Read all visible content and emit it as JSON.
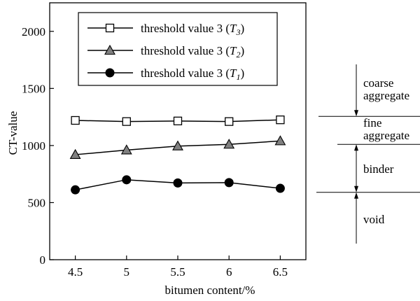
{
  "chart_data": {
    "type": "line",
    "xlabel": "bitumen content/%",
    "ylabel": "CT-value",
    "x": [
      4.5,
      5,
      5.5,
      6,
      6.5
    ],
    "x_tick_labels": [
      "4.5",
      "5",
      "5.5",
      "6",
      "6.5"
    ],
    "xlim": [
      4.25,
      6.75
    ],
    "ylim": [
      0,
      2250
    ],
    "y_ticks": [
      0,
      500,
      1000,
      1500,
      2000
    ],
    "y_tick_labels": [
      "0",
      "500",
      "1000",
      "1500",
      "2000"
    ],
    "grid": false,
    "legend_position": "top-center",
    "series": [
      {
        "name": "threshold value 3 (T3)",
        "legend_text": "threshold value 3 (",
        "legend_symbol": "T",
        "legend_subscript": "3",
        "legend_close": ")",
        "marker": "square-open",
        "values": [
          1220,
          1210,
          1215,
          1210,
          1225
        ]
      },
      {
        "name": "threshold value 3 (T2)",
        "legend_text": "threshold value 3 (",
        "legend_symbol": "T",
        "legend_subscript": "2",
        "legend_close": ")",
        "marker": "triangle-gray",
        "values": [
          920,
          960,
          995,
          1010,
          1040
        ]
      },
      {
        "name": "threshold value 3 (T1)",
        "legend_text": "threshold value 3 (",
        "legend_symbol": "T",
        "legend_subscript": "1",
        "legend_close": ")",
        "marker": "circle-filled",
        "values": [
          612,
          700,
          672,
          675,
          625
        ]
      }
    ],
    "annotations": {
      "levels": [
        1255,
        1010,
        590
      ],
      "regions": [
        {
          "lines": [
            "coarse",
            "aggregate"
          ]
        },
        {
          "lines": [
            "fine",
            "aggregate"
          ]
        },
        {
          "lines": [
            "binder"
          ]
        },
        {
          "lines": [
            "void"
          ]
        }
      ]
    }
  },
  "colors": {
    "line": "#000000",
    "triangle_fill": "#808080",
    "background": "#ffffff"
  }
}
